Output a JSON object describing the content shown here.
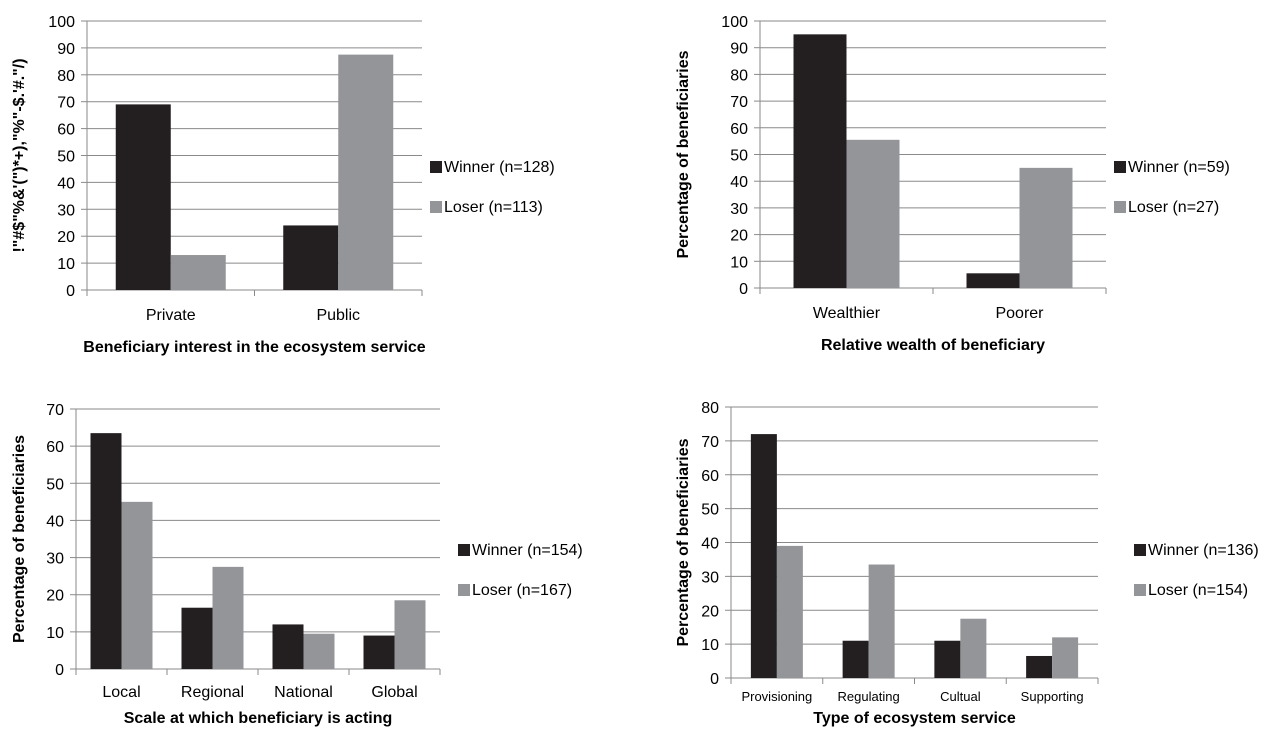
{
  "colors": {
    "winner": "#231f20",
    "loser": "#939598",
    "grid": "#8a8a8a",
    "axis": "#8a8a8a"
  },
  "chart_data": [
    {
      "type": "bar",
      "categories": [
        "Private",
        "Public"
      ],
      "series": [
        {
          "name": "Winner (n=128)",
          "values": [
            69,
            24
          ]
        },
        {
          "name": "Loser (n=113)",
          "values": [
            13,
            87.5
          ]
        }
      ],
      "xlabel": "Beneficiary interest in the ecosystem service",
      "ylabel": "!\"#$\"%&'(\")*+),\"%\"-$.'#.\"/)",
      "ylim": [
        0,
        100
      ],
      "yticks": [
        0,
        10,
        20,
        30,
        40,
        50,
        60,
        70,
        80,
        90,
        100
      ],
      "grid": true,
      "legend": "right"
    },
    {
      "type": "bar",
      "categories": [
        "Wealthier",
        "Poorer"
      ],
      "series": [
        {
          "name": "Winner (n=59)",
          "values": [
            95,
            5.5
          ]
        },
        {
          "name": "Loser (n=27)",
          "values": [
            55.5,
            45
          ]
        }
      ],
      "xlabel": "Relative wealth of beneficiary",
      "ylabel": "Percentage of beneficiaries",
      "ylim": [
        0,
        100
      ],
      "yticks": [
        0,
        10,
        20,
        30,
        40,
        50,
        60,
        70,
        80,
        90,
        100
      ],
      "grid": true,
      "legend": "right"
    },
    {
      "type": "bar",
      "categories": [
        "Local",
        "Regional",
        "National",
        "Global"
      ],
      "series": [
        {
          "name": "Winner (n=154)",
          "values": [
            63.5,
            16.5,
            12,
            9
          ]
        },
        {
          "name": "Loser (n=167)",
          "values": [
            45,
            27.5,
            9.5,
            18.5
          ]
        }
      ],
      "xlabel": "Scale at which beneficiary is acting",
      "ylabel": "Percentage of beneficiaries",
      "ylim": [
        0,
        70
      ],
      "yticks": [
        0,
        10,
        20,
        30,
        40,
        50,
        60,
        70
      ],
      "grid": true,
      "legend": "right"
    },
    {
      "type": "bar",
      "categories": [
        "Provisioning",
        "Regulating",
        "Cultual",
        "Supporting"
      ],
      "series": [
        {
          "name": "Winner (n=136)",
          "values": [
            72,
            11,
            11,
            6.5
          ]
        },
        {
          "name": "Loser (n=154)",
          "values": [
            39,
            33.5,
            17.5,
            12
          ]
        }
      ],
      "xlabel": "Type of ecosystem service",
      "ylabel": "Percentage of beneficiaries",
      "ylim": [
        0,
        80
      ],
      "yticks": [
        0,
        10,
        20,
        30,
        40,
        50,
        60,
        70,
        80
      ],
      "grid": true,
      "legend": "right"
    }
  ]
}
